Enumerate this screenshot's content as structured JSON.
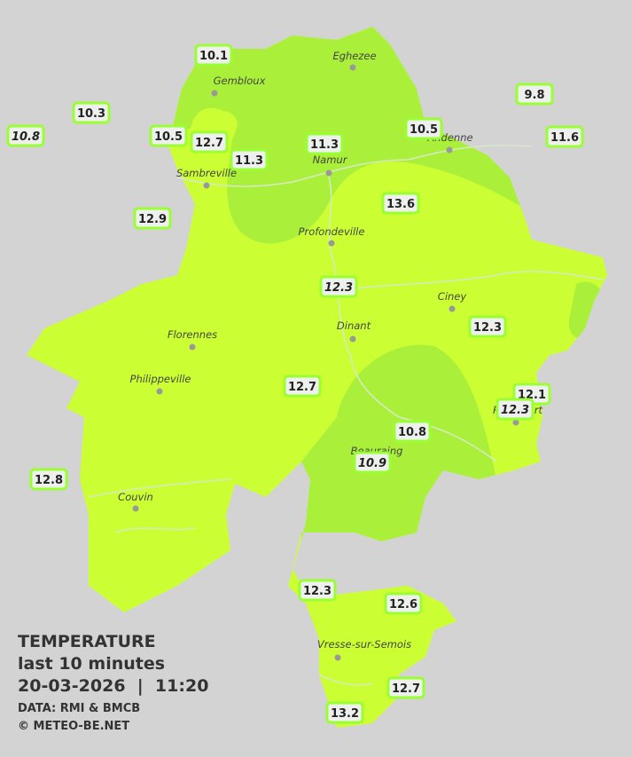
{
  "map": {
    "cities": [
      "Gembloux",
      "Eghezee",
      "Andenne",
      "Namur",
      "Sambreville",
      "Profondeville",
      "Ciney",
      "Dinant",
      "Florennes",
      "Philippeville",
      "Rochefort",
      "Beauraing",
      "Couvin",
      "Vresse-sur-Semois"
    ],
    "stations": [
      10.1,
      10.3,
      10.8,
      10.5,
      12.7,
      11.3,
      11.3,
      10.5,
      9.8,
      11.6,
      12.9,
      13.6,
      12.3,
      12.3,
      12.7,
      12.1,
      12.3,
      10.8,
      10.9,
      12.8,
      12.3,
      12.6,
      12.7,
      13.2
    ]
  },
  "legend": {
    "title": "TEMPERATURE",
    "period": "last 10 minutes",
    "datetime": "20-03-2026  |  11:20",
    "source": "DATA: RMI & BMCB",
    "credit": "© METEO-BE.NET"
  }
}
